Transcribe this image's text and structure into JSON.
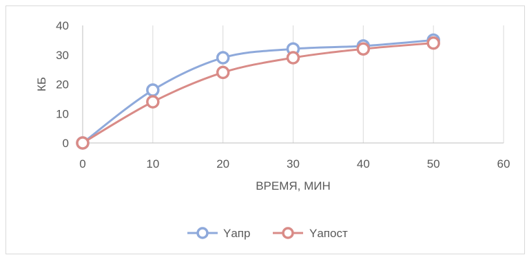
{
  "chart_data": {
    "type": "line",
    "smooth": true,
    "xlabel": "ВРЕМЯ, МИН",
    "ylabel": "КБ",
    "xlim": [
      0,
      60
    ],
    "ylim": [
      0,
      40
    ],
    "xticks": [
      0,
      10,
      20,
      30,
      40,
      50,
      60
    ],
    "yticks": [
      0,
      10,
      20,
      30,
      40
    ],
    "grid": "vertical",
    "legend_position": "bottom",
    "series": [
      {
        "name": "Yапр",
        "color": "#8ea9db",
        "marker_fill": "#ffffff",
        "x": [
          0,
          10,
          20,
          30,
          40,
          50
        ],
        "y": [
          0,
          18,
          29,
          32,
          33,
          35
        ]
      },
      {
        "name": "Yапост",
        "color": "#d98b87",
        "marker_fill": "#ffffff",
        "x": [
          0,
          10,
          20,
          30,
          40,
          50
        ],
        "y": [
          0,
          14,
          24,
          29,
          32,
          34
        ]
      }
    ]
  }
}
